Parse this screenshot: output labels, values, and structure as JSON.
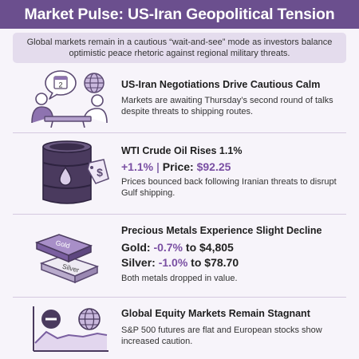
{
  "header": {
    "title": "Market Pulse: US-Iran Geopolitical Tension"
  },
  "intro": {
    "text": "Global markets remain in a cautious “wait-and-see” mode as investors balance optimistic peace rhetoric against regional military threats."
  },
  "sections": [
    {
      "title": "US-Iran Negotiations Drive Cautious Calm",
      "body": "Markets are awaiting Thursday’s second round of talks despite threats to shipping routes.",
      "icon": "negotiation-icon",
      "calendar_day": "2"
    },
    {
      "title": "WTI Crude Oil Rises 1.1%",
      "change": "+1.1%",
      "divider": "|",
      "price_label": "Price:",
      "price_value": "$92.25",
      "body": "Prices bounced back following Iranian threats to disrupt Gulf shipping.",
      "icon": "oil-barrel-icon",
      "tag_symbol": "$"
    },
    {
      "title": "Precious Metals Experience Slight Decline",
      "gold_label": "Gold:",
      "gold_change": "-0.7%",
      "gold_to": "to",
      "gold_value": "$4,805",
      "silver_label": "Silver:",
      "silver_change": "-1.0%",
      "silver_to": "to",
      "silver_value": "$78.70",
      "body": "Both metals dropped in value.",
      "icon": "bullion-icon",
      "gold_bar_text": "Gold",
      "silver_bar_text": "Silver"
    },
    {
      "title": "Global Equity Markets Remain Stagnant",
      "body": "S&P 500 futures are flat and European stocks show increased caution.",
      "icon": "stagnant-chart-icon"
    }
  ],
  "colors": {
    "header_bg": "#6b4f8e",
    "accent": "#7a4fa3",
    "intro_bg": "#e4dced"
  }
}
